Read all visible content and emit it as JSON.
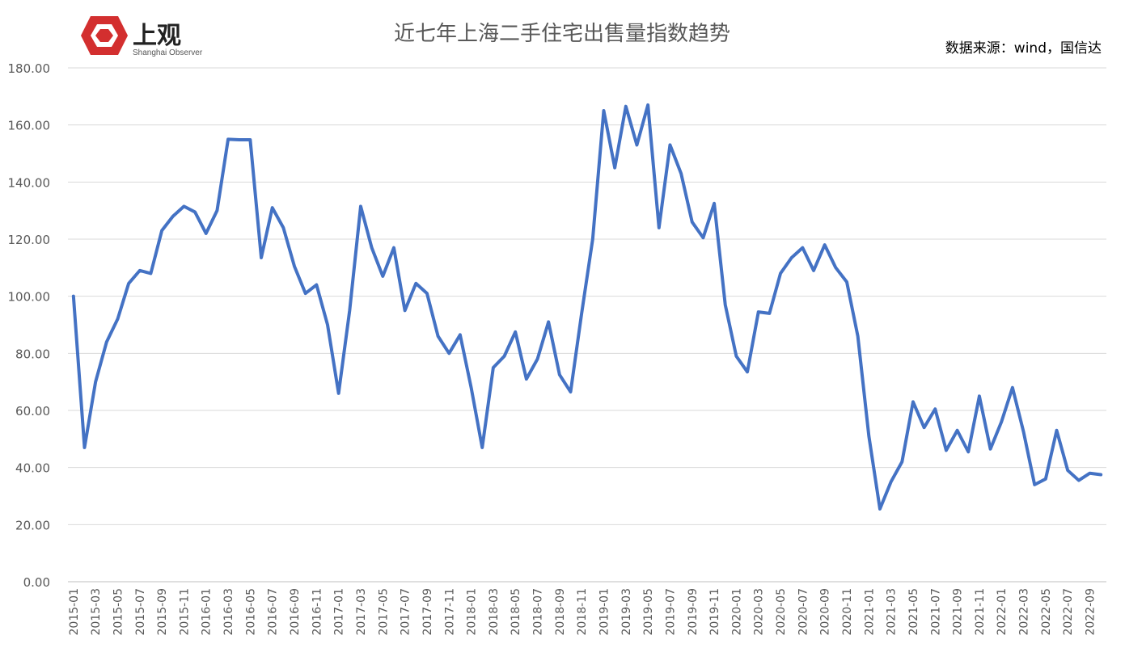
{
  "logo": {
    "name": "上观",
    "subtitle": "Shanghai Observer",
    "color_red": "#d32f2f"
  },
  "chart_data": {
    "type": "line",
    "title": "近七年上海二手住宅出售量指数趋势",
    "source": "数据来源：wind，国信达",
    "xlabel": "",
    "ylabel": "",
    "ylim": [
      0,
      180
    ],
    "y_ticks": [
      "0.00",
      "20.00",
      "40.00",
      "60.00",
      "80.00",
      "100.00",
      "120.00",
      "140.00",
      "160.00",
      "180.00"
    ],
    "grid": true,
    "legend": "none",
    "line_color": "#4472c4",
    "x_tick_labels": [
      "2015-01",
      "2015-03",
      "2015-05",
      "2015-07",
      "2015-09",
      "2015-11",
      "2016-01",
      "2016-03",
      "2016-05",
      "2016-07",
      "2016-09",
      "2016-11",
      "2017-01",
      "2017-03",
      "2017-05",
      "2017-07",
      "2017-09",
      "2017-11",
      "2018-01",
      "2018-03",
      "2018-05",
      "2018-07",
      "2018-09",
      "2018-11",
      "2019-01",
      "2019-03",
      "2019-05",
      "2019-07",
      "2019-09",
      "2019-11",
      "2020-01",
      "2020-03",
      "2020-05",
      "2020-07",
      "2020-09",
      "2020-11",
      "2021-01",
      "2021-03",
      "2021-05",
      "2021-07",
      "2021-09",
      "2021-11",
      "2022-01",
      "2022-03",
      "2022-05",
      "2022-07",
      "2022-09"
    ],
    "series": [
      {
        "values": [
          100,
          47,
          70,
          84,
          92,
          104.5,
          109,
          108,
          123,
          128,
          131.5,
          129.5,
          122,
          130,
          155,
          154.8,
          154.8,
          113.5,
          131,
          124,
          110.5,
          101,
          104,
          90,
          66,
          95,
          131.5,
          117,
          107,
          117,
          95,
          104.5,
          101,
          86,
          80,
          86.5,
          68,
          47,
          75,
          79,
          87.5,
          71,
          78,
          91,
          72.5,
          66.5,
          94,
          120,
          165,
          145,
          166.5,
          153,
          167,
          124,
          153,
          143,
          126,
          120.5,
          132.5,
          97,
          79,
          73.5,
          94.5,
          94,
          108,
          113.5,
          117,
          109,
          118,
          110,
          105,
          86,
          51,
          25.5,
          35,
          42,
          63,
          54,
          60.5,
          46,
          53,
          45.5,
          65,
          46.5,
          56,
          68,
          52.5,
          34,
          36,
          53,
          39,
          35.5,
          38,
          37.5
        ]
      }
    ]
  }
}
